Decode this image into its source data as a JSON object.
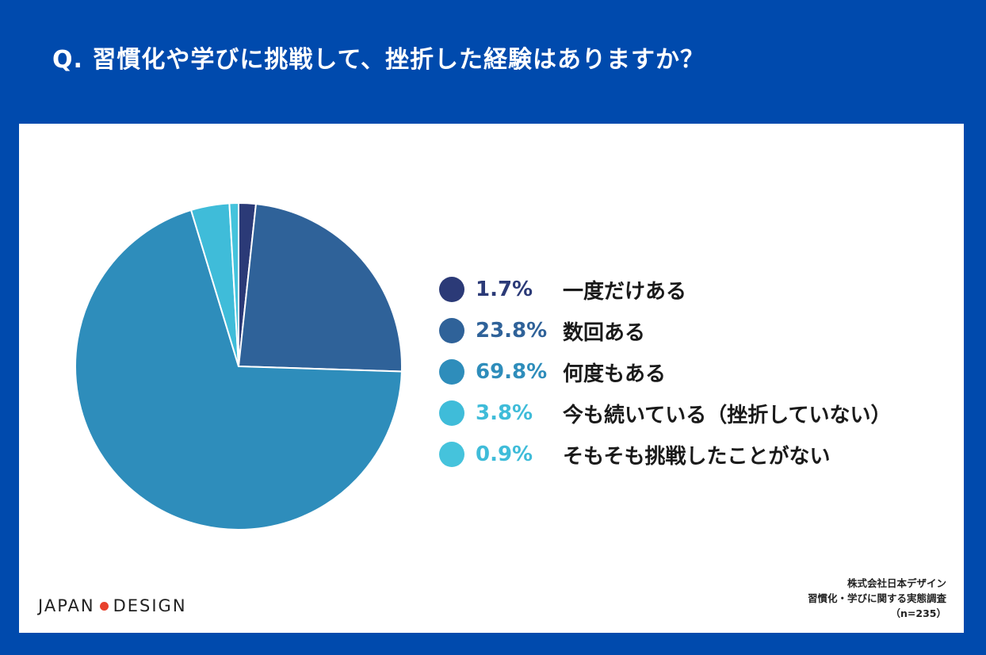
{
  "question": "Q. 習慣化や学びに挑戦して、挫折した経験はありますか？",
  "chart_data": {
    "type": "pie",
    "title": "Q. 習慣化や学びに挑戦して、挫折した経験はありますか？",
    "slices": [
      {
        "label": "一度だけある",
        "value": 1.7,
        "display": "1.7%",
        "color": "#2b3a77",
        "text_color": "#2b3a77"
      },
      {
        "label": "数回ある",
        "value": 23.8,
        "display": "23.8%",
        "color": "#2f6299",
        "text_color": "#2f6299"
      },
      {
        "label": "何度もある",
        "value": 69.8,
        "display": "69.8%",
        "color": "#2e8dbb",
        "text_color": "#2e8dbb"
      },
      {
        "label": "今も続いている（挫折していない）",
        "value": 3.8,
        "display": "3.8%",
        "color": "#3fbcd9",
        "text_color": "#3fbcd9"
      },
      {
        "label": "そもそも挑戦したことがない",
        "value": 0.9,
        "display": "0.9%",
        "color": "#45c3dc",
        "text_color": "#3fbcd9"
      }
    ],
    "legend": "right"
  },
  "logo": {
    "left": "JAPAN",
    "right": "DESIGN",
    "dot_color": "#e8412c"
  },
  "source": {
    "line1": "株式会社日本デザイン",
    "line2": "習慣化・学びに関する実態調査",
    "line3": "（n=235）"
  }
}
